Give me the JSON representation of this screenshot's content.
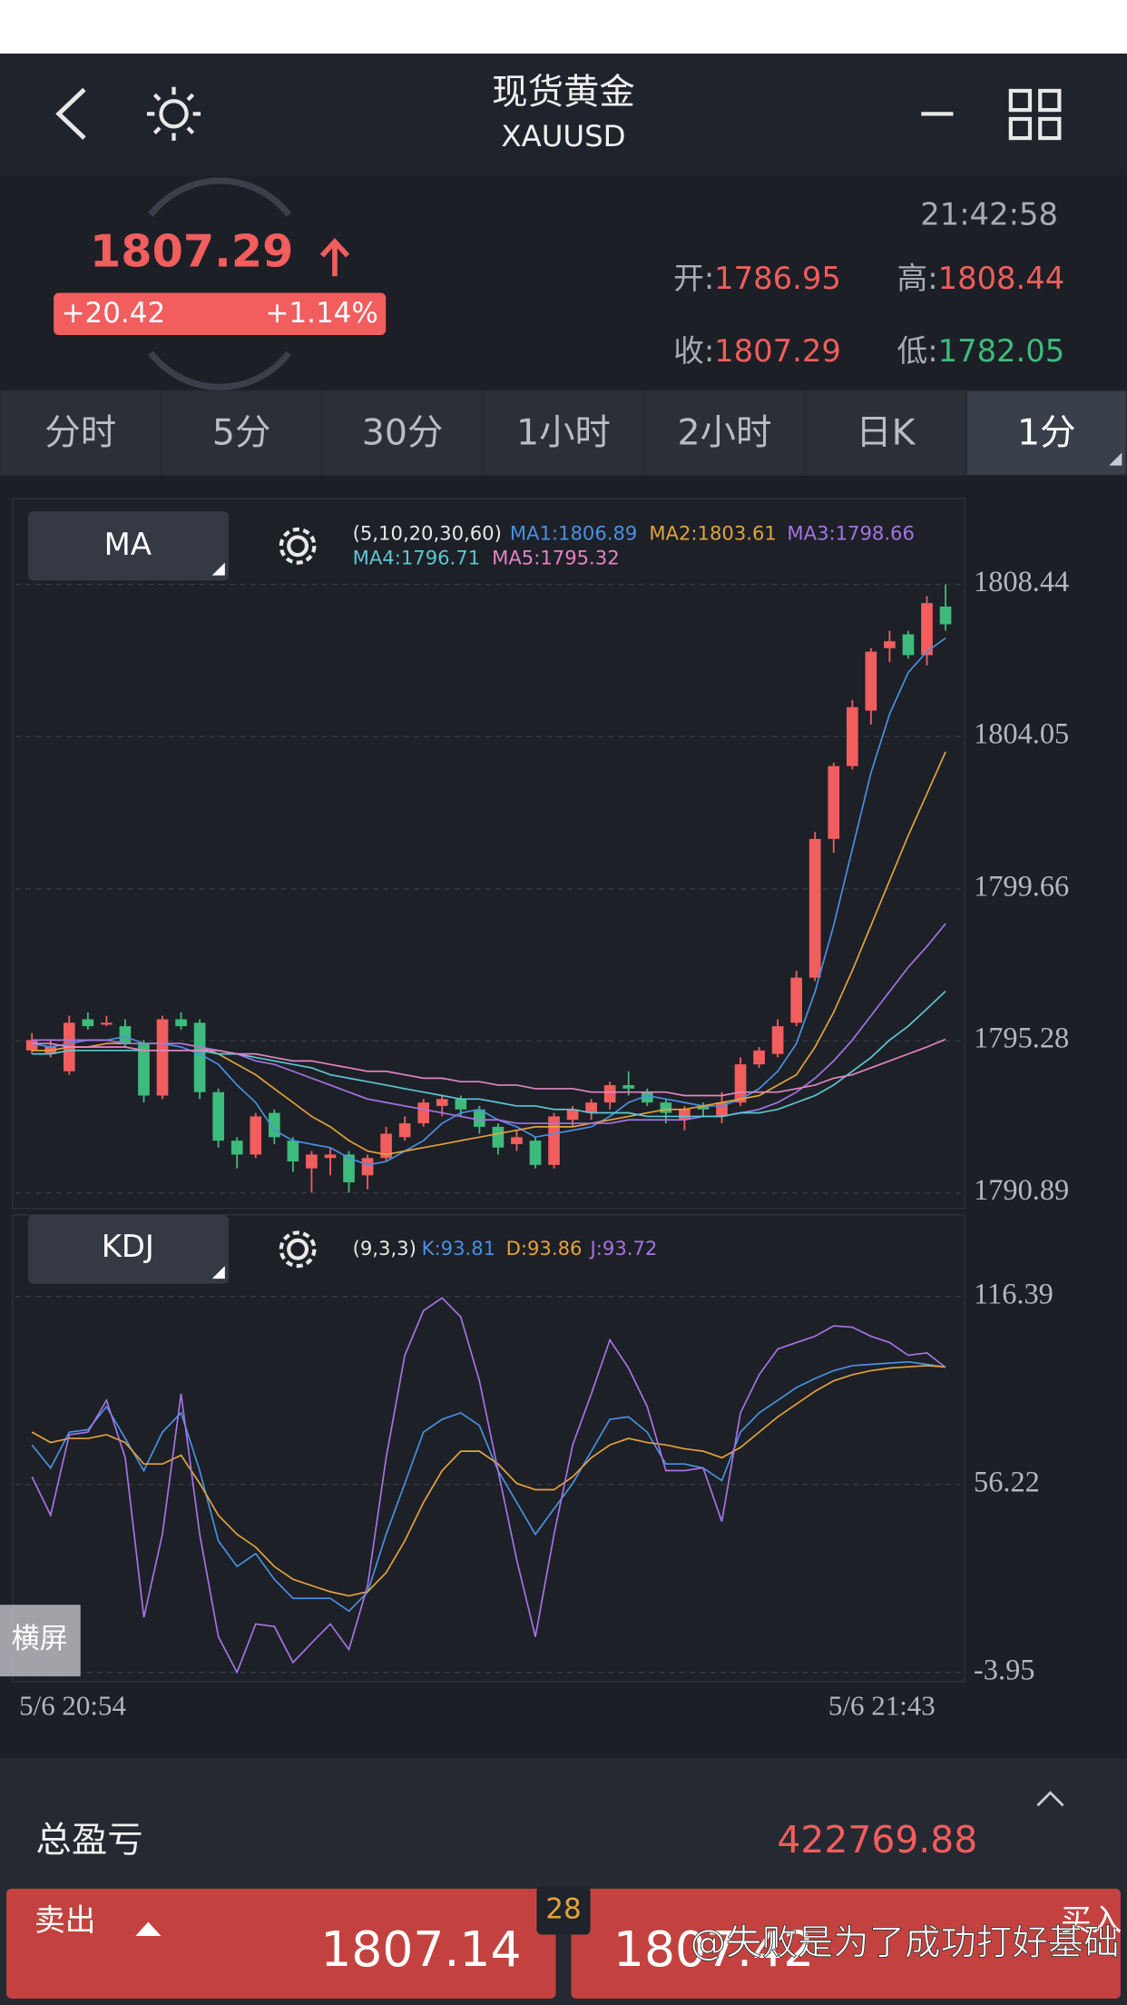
{
  "header": {
    "title": "现货黄金",
    "symbol": "XAUUSD"
  },
  "quote": {
    "price": 1807.29,
    "change": "+20.42",
    "change_pct": "+1.14%",
    "time": "21:42:58",
    "open_label": "开:",
    "open": 1786.95,
    "high_label": "高:",
    "high": 1808.44,
    "close_label": "收:",
    "close": 1807.29,
    "low_label": "低:",
    "low": 1782.05
  },
  "tabs": [
    "分时",
    "5分",
    "30分",
    "1小时",
    "2小时",
    "日K",
    "1分"
  ],
  "chart_data": [
    {
      "type": "candlestick",
      "indicator": "MA",
      "params": "(5,10,20,30,60)",
      "up_color": "#f25d5d",
      "down_color": "#3dbb7d",
      "ylim": [
        1790.89,
        1808.44
      ],
      "yticks": [
        1808.44,
        1804.05,
        1799.66,
        1795.28,
        1790.89
      ],
      "grid": true,
      "open": [
        1795.0,
        1794.9,
        1794.4,
        1795.9,
        1795.8,
        1795.7,
        1795.2,
        1793.7,
        1795.9,
        1795.8,
        1793.8,
        1792.4,
        1792.0,
        1793.2,
        1792.4,
        1791.6,
        1791.9,
        1792.0,
        1791.4,
        1791.9,
        1792.5,
        1792.9,
        1793.4,
        1793.6,
        1793.3,
        1792.8,
        1792.3,
        1792.4,
        1791.7,
        1793.0,
        1793.2,
        1793.5,
        1794.0,
        1793.8,
        1793.5,
        1793.0,
        1793.4,
        1793.1,
        1793.5,
        1794.6,
        1794.9,
        1795.8,
        1797.1,
        1801.1,
        1803.2,
        1804.8,
        1806.6,
        1807.0,
        1806.4,
        1807.8
      ],
      "high": [
        1795.5,
        1795.3,
        1796.0,
        1796.1,
        1796.0,
        1795.9,
        1795.3,
        1796.0,
        1796.1,
        1795.9,
        1793.9,
        1792.5,
        1793.2,
        1793.3,
        1792.5,
        1792.1,
        1792.2,
        1792.1,
        1792.0,
        1792.8,
        1793.1,
        1793.6,
        1793.7,
        1793.7,
        1793.4,
        1792.9,
        1792.7,
        1792.5,
        1793.2,
        1793.4,
        1793.6,
        1794.1,
        1794.4,
        1793.9,
        1793.6,
        1793.4,
        1793.5,
        1793.8,
        1794.8,
        1795.1,
        1795.9,
        1797.3,
        1801.3,
        1803.3,
        1805.1,
        1806.6,
        1807.1,
        1807.1,
        1808.1,
        1808.44
      ],
      "low": [
        1794.9,
        1794.8,
        1794.3,
        1795.6,
        1795.7,
        1795.1,
        1793.5,
        1793.6,
        1795.6,
        1793.6,
        1792.2,
        1791.6,
        1791.9,
        1792.3,
        1791.5,
        1790.9,
        1791.4,
        1790.9,
        1791.0,
        1791.8,
        1792.4,
        1792.8,
        1793.1,
        1793.1,
        1792.6,
        1792.0,
        1792.1,
        1791.6,
        1791.6,
        1792.8,
        1793.0,
        1793.3,
        1793.7,
        1793.4,
        1792.9,
        1792.7,
        1793.1,
        1792.9,
        1793.4,
        1794.5,
        1794.8,
        1795.7,
        1797.0,
        1800.7,
        1803.1,
        1804.4,
        1806.2,
        1806.3,
        1806.1,
        1807.1
      ],
      "close": [
        1795.3,
        1795.1,
        1795.8,
        1795.7,
        1795.8,
        1795.2,
        1793.7,
        1795.9,
        1795.7,
        1793.8,
        1792.4,
        1792.0,
        1793.1,
        1792.5,
        1791.8,
        1792.0,
        1792.0,
        1791.2,
        1791.9,
        1792.6,
        1792.9,
        1793.5,
        1793.6,
        1793.3,
        1792.8,
        1792.2,
        1792.5,
        1791.7,
        1793.1,
        1793.3,
        1793.5,
        1794.0,
        1793.9,
        1793.5,
        1793.2,
        1793.3,
        1793.3,
        1793.5,
        1794.6,
        1795.0,
        1795.7,
        1797.1,
        1801.1,
        1803.2,
        1804.9,
        1806.5,
        1806.8,
        1806.4,
        1807.9,
        1807.29
      ],
      "series": [
        {
          "name": "MA1:1806.89",
          "color": "#4a90e2",
          "values": [
            1795.2,
            1795.1,
            1795.2,
            1795.3,
            1795.3,
            1795.4,
            1795.2,
            1795.2,
            1795.1,
            1794.9,
            1794.6,
            1794.0,
            1793.5,
            1792.7,
            1792.4,
            1792.3,
            1792.2,
            1791.9,
            1791.7,
            1791.8,
            1792.1,
            1792.4,
            1792.9,
            1793.2,
            1793.3,
            1793.0,
            1792.8,
            1792.5,
            1792.6,
            1792.7,
            1792.8,
            1793.1,
            1793.5,
            1793.7,
            1793.6,
            1793.5,
            1793.4,
            1793.4,
            1793.6,
            1793.9,
            1794.4,
            1795.2,
            1796.7,
            1798.6,
            1800.8,
            1803.0,
            1804.7,
            1805.9,
            1806.5,
            1806.89
          ]
        },
        {
          "name": "MA2:1803.61",
          "color": "#e3a33b",
          "values": [
            1795.0,
            1795.0,
            1795.1,
            1795.1,
            1795.2,
            1795.2,
            1795.2,
            1795.2,
            1795.2,
            1795.1,
            1794.9,
            1794.6,
            1794.3,
            1793.9,
            1793.5,
            1793.1,
            1792.8,
            1792.4,
            1792.1,
            1792.0,
            1792.1,
            1792.2,
            1792.3,
            1792.4,
            1792.5,
            1792.6,
            1792.7,
            1792.8,
            1792.8,
            1792.8,
            1792.9,
            1793.0,
            1793.1,
            1793.2,
            1793.3,
            1793.3,
            1793.4,
            1793.5,
            1793.6,
            1793.7,
            1794.0,
            1794.3,
            1795.1,
            1796.1,
            1797.3,
            1798.6,
            1799.9,
            1801.2,
            1802.4,
            1803.61
          ]
        },
        {
          "name": "MA3:1798.66",
          "color": "#a574e3",
          "values": [
            1795.3,
            1795.3,
            1795.3,
            1795.3,
            1795.3,
            1795.2,
            1795.2,
            1795.2,
            1795.2,
            1795.1,
            1795.0,
            1794.9,
            1794.7,
            1794.6,
            1794.4,
            1794.2,
            1794.0,
            1793.8,
            1793.6,
            1793.5,
            1793.4,
            1793.3,
            1793.2,
            1793.1,
            1793.0,
            1793.0,
            1792.9,
            1792.9,
            1792.9,
            1792.9,
            1792.9,
            1792.9,
            1793.0,
            1793.0,
            1793.0,
            1793.0,
            1793.1,
            1793.1,
            1793.2,
            1793.3,
            1793.5,
            1793.8,
            1794.2,
            1794.7,
            1795.3,
            1796.0,
            1796.7,
            1797.4,
            1798.0,
            1798.66
          ]
        },
        {
          "name": "MA4:1796.71",
          "color": "#5cc7d2",
          "values": [
            1794.9,
            1794.9,
            1795.0,
            1795.0,
            1795.0,
            1795.0,
            1795.0,
            1795.0,
            1795.0,
            1795.0,
            1794.9,
            1794.9,
            1794.8,
            1794.7,
            1794.6,
            1794.5,
            1794.3,
            1794.2,
            1794.1,
            1794.0,
            1793.9,
            1793.8,
            1793.7,
            1793.6,
            1793.6,
            1793.5,
            1793.4,
            1793.4,
            1793.3,
            1793.3,
            1793.2,
            1793.2,
            1793.2,
            1793.1,
            1793.1,
            1793.1,
            1793.1,
            1793.1,
            1793.2,
            1793.2,
            1793.3,
            1793.5,
            1793.7,
            1794.0,
            1794.4,
            1794.8,
            1795.3,
            1795.7,
            1796.2,
            1796.71
          ]
        },
        {
          "name": "MA5:1795.32",
          "color": "#e384c3",
          "values": [
            1795.2,
            1795.2,
            1795.1,
            1795.1,
            1795.1,
            1795.1,
            1795.0,
            1795.0,
            1795.0,
            1795.0,
            1795.0,
            1794.9,
            1794.9,
            1794.8,
            1794.7,
            1794.7,
            1794.6,
            1794.5,
            1794.4,
            1794.4,
            1794.3,
            1794.2,
            1794.2,
            1794.1,
            1794.1,
            1794.0,
            1794.0,
            1793.9,
            1793.9,
            1793.9,
            1793.8,
            1793.8,
            1793.8,
            1793.8,
            1793.8,
            1793.7,
            1793.7,
            1793.7,
            1793.8,
            1793.8,
            1793.8,
            1793.9,
            1794.0,
            1794.2,
            1794.3,
            1794.5,
            1794.7,
            1794.9,
            1795.1,
            1795.32
          ]
        }
      ]
    },
    {
      "type": "line",
      "indicator": "KDJ",
      "params": "(9,3,3)",
      "ylim": [
        -3.95,
        116.39
      ],
      "yticks": [
        116.39,
        56.22,
        -3.95
      ],
      "grid": true,
      "categories": [
        "5/6 20:54",
        null,
        null,
        null,
        null,
        null,
        null,
        null,
        null,
        null,
        null,
        null,
        null,
        null,
        null,
        null,
        null,
        null,
        null,
        null,
        null,
        null,
        null,
        null,
        null,
        null,
        null,
        null,
        null,
        null,
        null,
        null,
        null,
        null,
        null,
        null,
        null,
        null,
        null,
        null,
        null,
        null,
        null,
        null,
        null,
        null,
        null,
        null,
        null,
        "5/6 21:43"
      ],
      "series": [
        {
          "name": "K:93.81",
          "color": "#4a90e2",
          "values": [
            68.9,
            61.5,
            73.0,
            73.8,
            81.2,
            71.0,
            60.7,
            73.0,
            79.2,
            60.7,
            38.2,
            30.0,
            34.1,
            25.9,
            19.8,
            19.8,
            19.8,
            15.7,
            21.8,
            40.3,
            56.6,
            73.0,
            77.1,
            79.2,
            75.1,
            60.7,
            50.5,
            40.3,
            48.5,
            56.6,
            66.9,
            77.1,
            77.9,
            73.0,
            62.8,
            62.8,
            61.5,
            57.5,
            73.0,
            79.2,
            83.2,
            87.3,
            90.2,
            92.7,
            94.3,
            94.7,
            95.1,
            95.5,
            94.7,
            93.81
          ]
        },
        {
          "name": "D:93.86",
          "color": "#e3a33b",
          "values": [
            73.0,
            69.7,
            71.0,
            71.0,
            72.2,
            69.7,
            62.8,
            62.8,
            65.6,
            56.6,
            46.4,
            40.3,
            36.2,
            30.0,
            25.9,
            23.9,
            21.9,
            20.6,
            21.9,
            28.0,
            38.2,
            50.5,
            60.7,
            66.9,
            66.9,
            62.8,
            56.6,
            54.6,
            54.6,
            58.7,
            64.8,
            68.9,
            71.0,
            69.7,
            68.9,
            67.7,
            66.9,
            64.8,
            68.1,
            73.0,
            77.9,
            82.0,
            86.1,
            89.4,
            91.4,
            92.7,
            93.5,
            93.9,
            94.3,
            93.86
          ]
        },
        {
          "name": "J:93.72",
          "color": "#a574e3",
          "values": [
            58.7,
            46.4,
            72.2,
            73.0,
            83.2,
            64.8,
            13.7,
            40.3,
            85.3,
            40.3,
            7.5,
            -3.9,
            11.6,
            10.8,
            -0.7,
            5.5,
            11.6,
            3.4,
            23.9,
            64.8,
            97.6,
            111.9,
            116.0,
            109.9,
            89.4,
            60.7,
            32.1,
            7.5,
            40.3,
            68.9,
            85.3,
            102.5,
            93.5,
            81.2,
            60.7,
            60.7,
            61.6,
            44.4,
            79.2,
            91.4,
            99.6,
            101.7,
            103.7,
            107.0,
            106.6,
            103.7,
            101.7,
            97.6,
            98.4,
            93.72
          ]
        }
      ]
    }
  ],
  "landscape": "横屏",
  "footer": {
    "pnl_label": "总盈亏",
    "pnl": 422769.88,
    "sell_label": "卖出",
    "sell_price": 1807.14,
    "spread": 28,
    "buy_label": "买入",
    "buy_price": 1807.42,
    "watermark": "@失败是为了成功打好基础"
  }
}
